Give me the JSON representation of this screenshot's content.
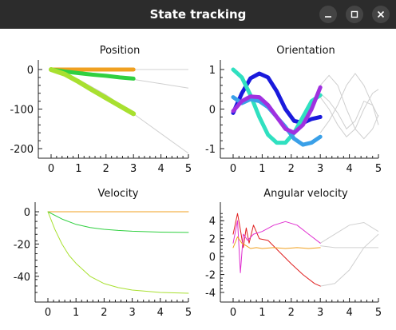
{
  "window": {
    "title": "State tracking"
  },
  "window_buttons": [
    "minimize-icon",
    "maximize-icon",
    "close-icon"
  ],
  "chart_data": [
    {
      "type": "line",
      "title": "Position",
      "xlim": [
        0,
        5
      ],
      "ylim": [
        -200,
        0
      ],
      "xticks": [
        "0",
        "1",
        "2",
        "3",
        "4",
        "5"
      ],
      "yticks": [
        "0",
        "-100",
        "-200"
      ],
      "reference_color": "#d0d0d0",
      "series": [
        {
          "color": "#f0a020",
          "width": 5,
          "x": [
            0,
            3
          ],
          "y": [
            0,
            0
          ]
        },
        {
          "color": "#30d040",
          "width": 5,
          "x": [
            0,
            0.5,
            1,
            1.5,
            2,
            2.5,
            3
          ],
          "y": [
            0,
            -5,
            -9,
            -13,
            -16,
            -20,
            -23
          ]
        },
        {
          "color": "#a8e030",
          "width": 6,
          "x": [
            0,
            0.5,
            1,
            1.5,
            2,
            2.5,
            3
          ],
          "y": [
            0,
            -12,
            -31,
            -52,
            -72,
            -92,
            -112
          ]
        }
      ],
      "reference": [
        {
          "x": [
            0,
            1,
            2,
            3,
            4,
            5
          ],
          "y": [
            0,
            0,
            0,
            0,
            0,
            0
          ]
        },
        {
          "x": [
            0,
            1,
            2,
            3,
            4,
            5
          ],
          "y": [
            0,
            -7,
            -16,
            -25,
            -36,
            -47
          ]
        },
        {
          "x": [
            0,
            1,
            2,
            3,
            4,
            5
          ],
          "y": [
            0,
            -25,
            -64,
            -112,
            -162,
            -212
          ]
        }
      ]
    },
    {
      "type": "line",
      "title": "Orientation",
      "xlim": [
        0,
        5
      ],
      "ylim": [
        -1,
        1
      ],
      "xticks": [
        "0",
        "1",
        "2",
        "3",
        "4",
        "5"
      ],
      "yticks": [
        "1",
        "0",
        "-1"
      ],
      "reference_color": "#d0d0d0",
      "series": [
        {
          "color": "#1a1adc",
          "width": 5,
          "x": [
            0,
            0.3,
            0.6,
            0.9,
            1.2,
            1.5,
            1.8,
            2.1,
            2.4,
            2.7,
            3.0
          ],
          "y": [
            -0.1,
            0.4,
            0.78,
            0.9,
            0.8,
            0.45,
            0.0,
            -0.3,
            -0.35,
            -0.25,
            -0.2
          ]
        },
        {
          "color": "#30e0c0",
          "width": 5,
          "x": [
            0,
            0.3,
            0.6,
            0.9,
            1.2,
            1.5,
            1.8,
            2.1,
            2.4,
            2.7,
            3.0
          ],
          "y": [
            1.0,
            0.8,
            0.35,
            -0.2,
            -0.65,
            -0.85,
            -0.85,
            -0.6,
            -0.2,
            0.2,
            0.35
          ]
        },
        {
          "color": "#3aa0e8",
          "width": 5,
          "x": [
            0,
            0.3,
            0.6,
            0.9,
            1.2,
            1.5,
            1.8,
            2.1,
            2.4,
            2.7,
            3.0
          ],
          "y": [
            0.3,
            0.15,
            0.25,
            0.2,
            0.05,
            -0.2,
            -0.45,
            -0.75,
            -0.9,
            -0.85,
            -0.7
          ]
        },
        {
          "color": "#a030e0",
          "width": 5,
          "x": [
            0,
            0.3,
            0.6,
            0.9,
            1.2,
            1.5,
            1.8,
            2.1,
            2.4,
            2.7,
            3.0
          ],
          "y": [
            -0.05,
            0.2,
            0.32,
            0.3,
            0.1,
            -0.2,
            -0.5,
            -0.6,
            -0.4,
            0.0,
            0.55
          ]
        }
      ],
      "reference": [
        {
          "x": [
            3.0,
            3.3,
            3.6,
            3.9,
            4.2,
            4.5,
            4.8,
            5.0
          ],
          "y": [
            0.6,
            0.85,
            0.6,
            0.0,
            -0.5,
            -0.75,
            -0.5,
            -0.15
          ]
        },
        {
          "x": [
            3.0,
            3.3,
            3.6,
            3.9,
            4.2,
            4.5,
            4.8,
            5.0
          ],
          "y": [
            0.3,
            0.0,
            -0.4,
            -0.7,
            -0.5,
            0.0,
            0.4,
            0.5
          ]
        },
        {
          "x": [
            3.0,
            3.3,
            3.6,
            3.9,
            4.2,
            4.5,
            4.8,
            5.0
          ],
          "y": [
            -0.6,
            -0.3,
            0.1,
            0.6,
            0.9,
            0.6,
            0.1,
            -0.4
          ]
        },
        {
          "x": [
            3.0,
            3.3,
            3.6,
            3.9,
            4.2,
            4.5,
            4.8,
            5.0
          ],
          "y": [
            0.4,
            0.2,
            -0.1,
            -0.5,
            -0.3,
            0.2,
            0.1,
            -0.2
          ]
        }
      ]
    },
    {
      "type": "line",
      "title": "Velocity",
      "xlim": [
        0,
        5
      ],
      "ylim": [
        -50,
        0
      ],
      "xticks": [
        "0",
        "1",
        "2",
        "3",
        "4",
        "5"
      ],
      "yticks": [
        "0",
        "-20",
        "-40"
      ],
      "reference_color": "#d0d0d0",
      "series": [
        {
          "color": "#f0a020",
          "width": 1,
          "x": [
            0,
            1,
            2,
            3,
            4,
            5
          ],
          "y": [
            0,
            0,
            0,
            0,
            0,
            0
          ]
        },
        {
          "color": "#30d040",
          "width": 1,
          "x": [
            0,
            0.5,
            1,
            1.5,
            2,
            2.5,
            3,
            4,
            5
          ],
          "y": [
            0,
            -4.5,
            -7.8,
            -9.8,
            -10.9,
            -11.6,
            -12.1,
            -12.6,
            -12.8
          ]
        },
        {
          "color": "#a8e030",
          "width": 1,
          "x": [
            0,
            0.25,
            0.5,
            0.75,
            1,
            1.5,
            2,
            2.5,
            3,
            4,
            5
          ],
          "y": [
            0,
            -11,
            -20,
            -27,
            -32,
            -40,
            -44.5,
            -47,
            -48.5,
            -50,
            -50.5
          ]
        }
      ],
      "reference": []
    },
    {
      "type": "line",
      "title": "Angular velocity",
      "xlim": [
        0,
        5
      ],
      "ylim": [
        -4,
        5
      ],
      "xticks": [
        "0",
        "1",
        "2",
        "3",
        "4",
        "5"
      ],
      "yticks": [
        "4",
        "2",
        "0",
        "-2",
        "-4"
      ],
      "reference_color": "#d0d0d0",
      "series": [
        {
          "color": "#e02020",
          "width": 1,
          "x": [
            0,
            0.15,
            0.25,
            0.35,
            0.45,
            0.55,
            0.7,
            0.9,
            1.2,
            1.6,
            2.0,
            2.4,
            2.8,
            3.0
          ],
          "y": [
            2.5,
            4.8,
            3.0,
            1.0,
            3.2,
            1.5,
            3.5,
            2.0,
            1.8,
            0.5,
            -0.8,
            -2.0,
            -3.0,
            -3.3
          ]
        },
        {
          "color": "#e030d0",
          "width": 1,
          "x": [
            0,
            0.15,
            0.25,
            0.35,
            0.5,
            0.7,
            1.0,
            1.4,
            1.8,
            2.2,
            2.6,
            3.0
          ],
          "y": [
            1.5,
            4.0,
            -1.8,
            2.5,
            1.8,
            2.5,
            2.8,
            3.5,
            3.9,
            3.5,
            2.5,
            1.5
          ]
        },
        {
          "color": "#f0a020",
          "width": 1,
          "x": [
            0,
            0.15,
            0.3,
            0.45,
            0.6,
            0.8,
            1.0,
            1.4,
            1.8,
            2.2,
            2.6,
            3.0
          ],
          "y": [
            1.0,
            2.2,
            1.5,
            1.2,
            0.9,
            1.0,
            0.9,
            1.0,
            0.9,
            1.0,
            0.9,
            1.0
          ]
        }
      ],
      "reference": [
        {
          "x": [
            3.0,
            3.5,
            4.0,
            4.5,
            5.0
          ],
          "y": [
            1.2,
            1.0,
            1.0,
            1.0,
            1.0
          ]
        },
        {
          "x": [
            3.0,
            3.5,
            4.0,
            4.5,
            5.0
          ],
          "y": [
            1.5,
            2.5,
            3.5,
            3.8,
            2.8
          ]
        },
        {
          "x": [
            3.0,
            3.5,
            4.0,
            4.5,
            5.0
          ],
          "y": [
            -3.3,
            -3.0,
            -1.5,
            1.0,
            2.5
          ]
        }
      ]
    }
  ]
}
